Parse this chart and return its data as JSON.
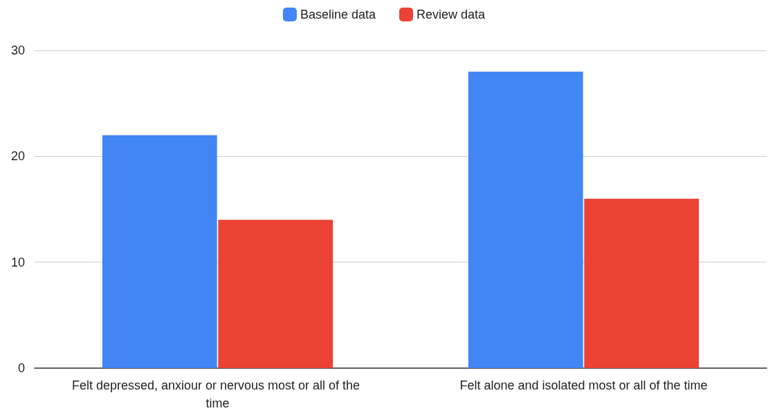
{
  "chart_data": {
    "type": "bar",
    "categories": [
      "Felt depressed, anxiour or nervous most or all of the time",
      "Felt alone and isolated most or all of the time"
    ],
    "series": [
      {
        "name": "Baseline data",
        "color": "#4285f4",
        "values": [
          22,
          28
        ]
      },
      {
        "name": "Review data",
        "color": "#ea4335",
        "values": [
          14,
          16
        ]
      }
    ],
    "ylim": [
      0,
      30
    ],
    "yticks": [
      0,
      10,
      20,
      30
    ],
    "grid": "y",
    "legend": "top"
  }
}
